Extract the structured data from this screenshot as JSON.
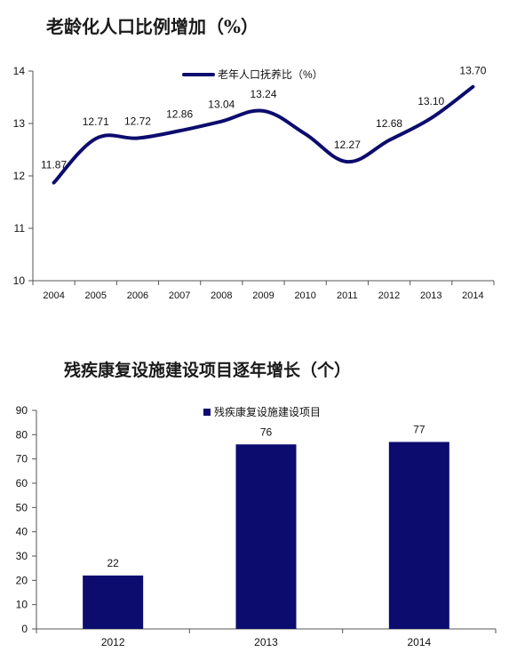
{
  "chart_data": [
    {
      "type": "line",
      "title": "老龄化人口比例增加（%）",
      "categories": [
        "2004",
        "2005",
        "2006",
        "2007",
        "2008",
        "2009",
        "2010",
        "2011",
        "2012",
        "2013",
        "2014"
      ],
      "series": [
        {
          "name": "老年人口抚养比（%）",
          "values": [
            11.87,
            12.71,
            12.72,
            12.86,
            13.04,
            13.24,
            12.8,
            12.27,
            12.68,
            13.1,
            13.7
          ],
          "labels": [
            "11.87",
            "12.71",
            "12.72",
            "12.86",
            "13.04",
            "13.24",
            "",
            "12.27",
            "12.68",
            "13.10",
            "13.70"
          ],
          "color": "#0c0c6e"
        }
      ],
      "ylim": [
        10,
        14
      ],
      "yticks": [
        "10",
        "11",
        "12",
        "13",
        "14"
      ],
      "legend": "top-center",
      "grid": false
    },
    {
      "type": "bar",
      "title": "残疾康复设施建设项目逐年增长（个）",
      "categories": [
        "2012",
        "2013",
        "2014"
      ],
      "series": [
        {
          "name": "残疾康复设施建设项目",
          "values": [
            22,
            76,
            77
          ],
          "labels": [
            "22",
            "76",
            "77"
          ],
          "color": "#0c0c6e"
        }
      ],
      "ylim": [
        0,
        90
      ],
      "yticks": [
        "0",
        "10",
        "20",
        "30",
        "40",
        "50",
        "60",
        "70",
        "80",
        "90"
      ],
      "legend": "top-center",
      "grid": false
    }
  ]
}
